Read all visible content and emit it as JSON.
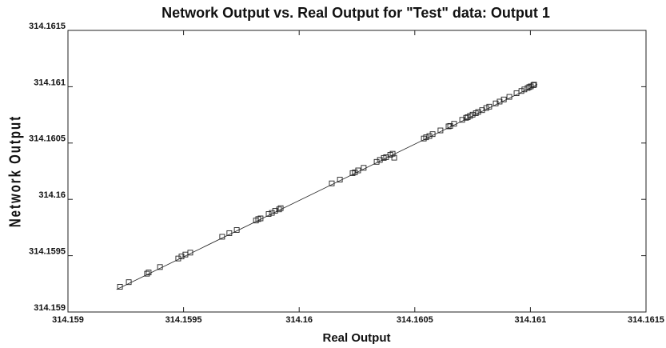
{
  "chart_data": {
    "type": "scatter",
    "title": "Network Output vs. Real Output for \"Test\" data:   Output 1",
    "x_label": "Real Output",
    "y_label": "Network Output",
    "xlim": [
      314.159,
      314.1615
    ],
    "ylim": [
      314.159,
      314.1615
    ],
    "xticks": [
      314.159,
      314.1595,
      314.16,
      314.1605,
      314.161,
      314.1615
    ],
    "yticks": [
      314.159,
      314.1595,
      314.16,
      314.1605,
      314.161,
      314.1615
    ],
    "color": "#222222",
    "x": [
      314.159225,
      314.159263,
      314.159342,
      314.159349,
      314.159398,
      314.159477,
      314.159491,
      314.159508,
      314.159529,
      314.159667,
      314.159698,
      314.15973,
      314.159813,
      314.159823,
      314.159833,
      314.159868,
      314.159882,
      314.159896,
      314.159913,
      314.15992,
      314.160141,
      314.160176,
      314.160231,
      314.160241,
      314.160255,
      314.160279,
      314.160335,
      314.160349,
      314.160366,
      314.160376,
      314.160394,
      314.160404,
      314.160411,
      314.160539,
      314.160549,
      314.160563,
      314.160577,
      314.160611,
      314.160646,
      314.160653,
      314.16067,
      314.160705,
      314.160722,
      314.160729,
      314.160739,
      314.16075,
      314.160764,
      314.160774,
      314.160791,
      314.160809,
      314.160822,
      314.16085,
      314.160867,
      314.160885,
      314.160909,
      314.16094,
      314.160961,
      314.160974,
      314.160988,
      314.160995,
      314.161002,
      314.161013,
      314.161016
    ],
    "y": [
      314.159224,
      314.159265,
      314.15934,
      314.159351,
      314.159399,
      314.159475,
      314.159493,
      314.15951,
      314.159527,
      314.159668,
      314.1597,
      314.159728,
      314.159812,
      314.159825,
      314.159831,
      314.15987,
      314.15988,
      314.159898,
      314.159911,
      314.159922,
      314.160142,
      314.160175,
      314.160233,
      314.16024,
      314.160257,
      314.16028,
      314.160333,
      314.16035,
      314.160368,
      314.160375,
      314.160396,
      314.160405,
      314.16037,
      314.16054,
      314.160551,
      314.160562,
      314.160579,
      314.160612,
      314.160648,
      314.160652,
      314.160671,
      314.160706,
      314.160724,
      314.16073,
      314.160741,
      314.160752,
      314.160765,
      314.160776,
      314.160792,
      314.160811,
      314.160823,
      314.160852,
      314.160868,
      314.160887,
      314.16091,
      314.160942,
      314.160962,
      314.160976,
      314.160989,
      314.160997,
      314.161003,
      314.161014,
      314.161018
    ],
    "fit_line": {
      "x": [
        314.15921,
        314.16103
      ],
      "y": [
        314.1592,
        314.16102
      ]
    }
  }
}
